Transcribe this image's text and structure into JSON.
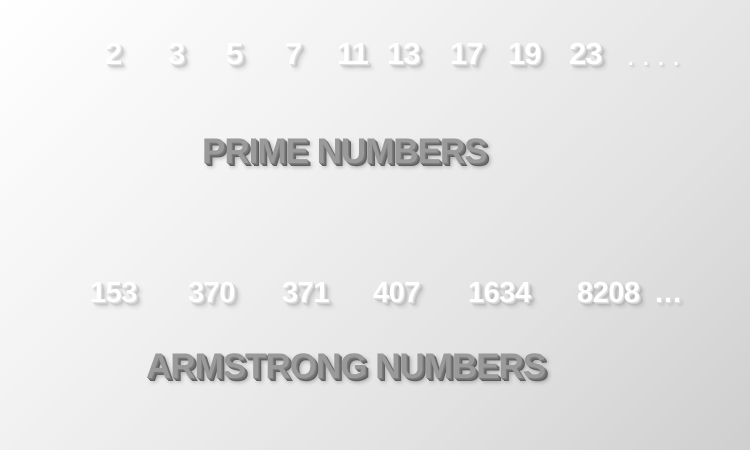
{
  "primes": {
    "numbers": [
      "2",
      "3",
      "5",
      "7",
      "11",
      "13",
      "17",
      "19",
      "23"
    ],
    "ellipsis": ". . . .",
    "heading": "PRIME NUMBERS"
  },
  "armstrong": {
    "numbers": [
      "153",
      "370",
      "371",
      "407",
      "1634",
      "8208"
    ],
    "ellipsis": "...",
    "heading": "ARMSTRONG NUMBERS"
  },
  "colors": {
    "number_text": "#ffffff",
    "heading_text": "#9a9a9a",
    "background_light": "#ffffff",
    "background_dark": "#cfcfcf"
  }
}
